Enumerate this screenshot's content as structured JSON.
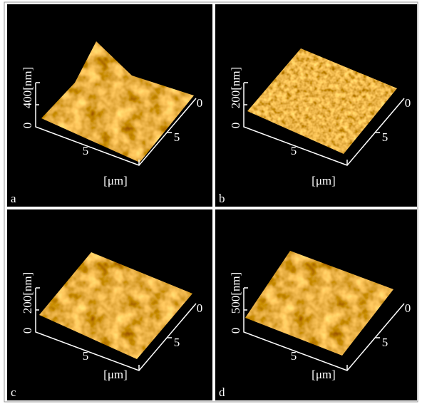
{
  "panels": [
    {
      "label": "a",
      "z_max_label": "400[nm]",
      "z_min_label": "0",
      "x_tick": "5",
      "y_ticks": [
        "0",
        "5"
      ],
      "unit_label": "[μm]"
    },
    {
      "label": "b",
      "z_max_label": "200[nm]",
      "z_min_label": "0",
      "x_tick": "5",
      "y_ticks": [
        "0",
        "5"
      ],
      "unit_label": "[μm]"
    },
    {
      "label": "c",
      "z_max_label": "200[nm]",
      "z_min_label": "0",
      "x_tick": "5",
      "y_ticks": [
        "0",
        "5"
      ],
      "unit_label": "[μm]"
    },
    {
      "label": "d",
      "z_max_label": "500[nm]",
      "z_min_label": "0",
      "x_tick": "5",
      "y_ticks": [
        "0",
        "5"
      ],
      "unit_label": "[μm]"
    }
  ]
}
